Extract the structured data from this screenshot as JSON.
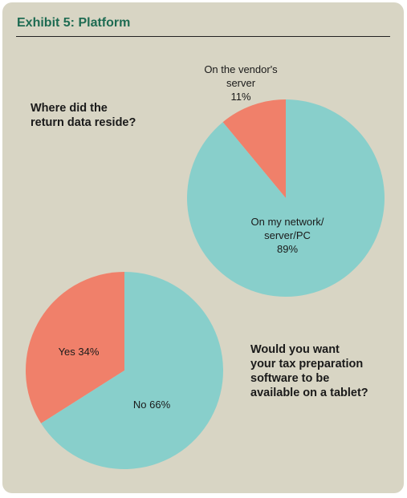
{
  "exhibit_title": "Exhibit 5: Platform",
  "colors": {
    "teal": "#88cfcb",
    "salmon": "#f0806a",
    "title_green": "#1e6b52",
    "background": "#d8d5c4"
  },
  "chart_data": [
    {
      "type": "pie",
      "title": "Where did the return data reside?",
      "slices": [
        {
          "label": "On the vendor's server",
          "value": 11,
          "value_label": "11%",
          "color": "#f0806a"
        },
        {
          "label": "On my network/ server/PC",
          "value": 89,
          "value_label": "89%",
          "color": "#88cfcb"
        }
      ],
      "start": "12 o'clock",
      "direction": "counterclockwise"
    },
    {
      "type": "pie",
      "title": "Would you want your tax preparation software to be available on a tablet?",
      "slices": [
        {
          "label": "Yes",
          "value": 34,
          "value_label": "34%",
          "color": "#f0806a"
        },
        {
          "label": "No",
          "value": 66,
          "value_label": "66%",
          "color": "#88cfcb"
        }
      ],
      "start": "12 o'clock",
      "direction": "counterclockwise"
    }
  ],
  "text": {
    "q1_line1": "Where did the",
    "q1_line2": "return data reside?",
    "q2_line1": "Would you want",
    "q2_line2": "your tax preparation",
    "q2_line3": "software to be",
    "q2_line4": "available on a tablet?",
    "pie1_vendor_line1": "On the vendor's",
    "pie1_vendor_line2": "server",
    "pie1_vendor_pct": "11%",
    "pie1_network_line1": "On my network/",
    "pie1_network_line2": "server/PC",
    "pie1_network_pct": "89%",
    "pie2_yes": "Yes 34%",
    "pie2_no": "No 66%"
  }
}
